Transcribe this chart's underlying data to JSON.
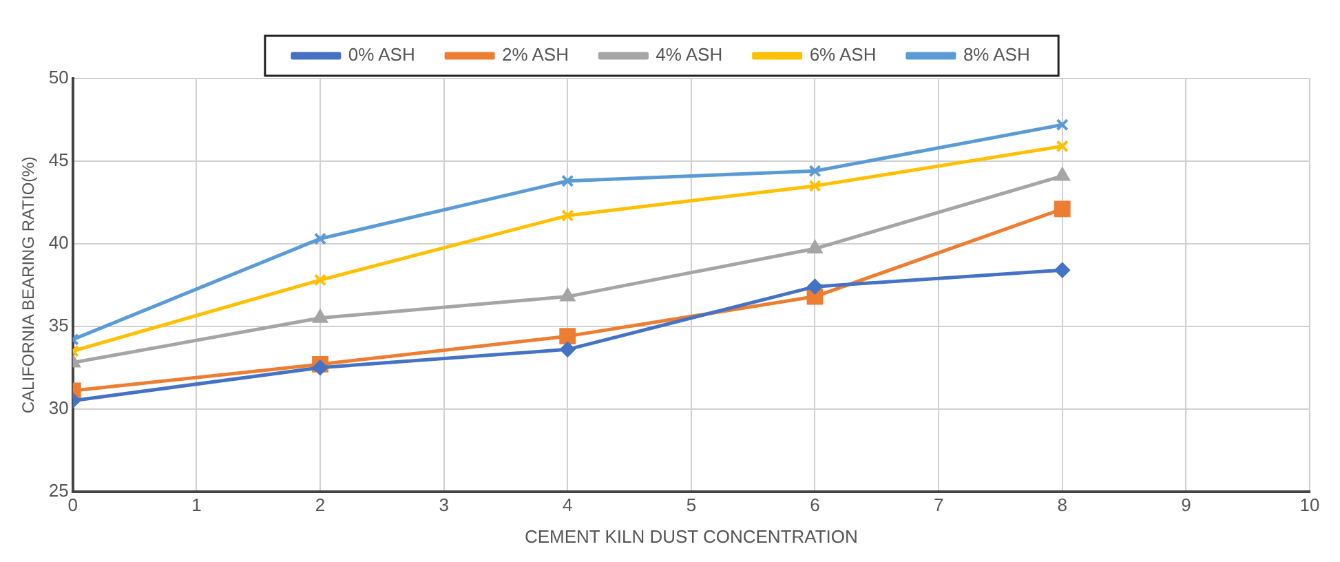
{
  "chart_data": {
    "type": "line",
    "xlabel": "CEMENT KILN DUST CONCENTRATION",
    "ylabel": "CALIFORNIA BEARING RATIO(%)",
    "x": [
      0,
      2,
      4,
      6,
      8
    ],
    "series": [
      {
        "name": "0% ASH",
        "color": "#4472c4",
        "marker": "diamond",
        "values": [
          30.5,
          32.5,
          33.6,
          37.4,
          38.4
        ]
      },
      {
        "name": "2% ASH",
        "color": "#ed7d31",
        "marker": "square",
        "values": [
          31.1,
          32.7,
          34.4,
          36.8,
          42.1
        ]
      },
      {
        "name": "4% ASH",
        "color": "#a5a5a5",
        "marker": "triangle",
        "values": [
          32.8,
          35.5,
          36.8,
          39.7,
          44.1
        ]
      },
      {
        "name": "6% ASH",
        "color": "#ffc000",
        "marker": "cross",
        "values": [
          33.5,
          37.8,
          41.7,
          43.5,
          45.9
        ]
      },
      {
        "name": "8% ASH",
        "color": "#5b9bd5",
        "marker": "cross",
        "values": [
          34.2,
          40.3,
          43.8,
          44.4,
          47.2
        ]
      }
    ],
    "xlim": [
      0,
      10
    ],
    "xticks": [
      0,
      1,
      2,
      3,
      4,
      5,
      6,
      7,
      8,
      9,
      10
    ],
    "ylim": [
      25,
      50
    ],
    "yticks": [
      25,
      30,
      35,
      40,
      45,
      50
    ],
    "grid": true,
    "legend": "top",
    "line_style": "solid"
  }
}
